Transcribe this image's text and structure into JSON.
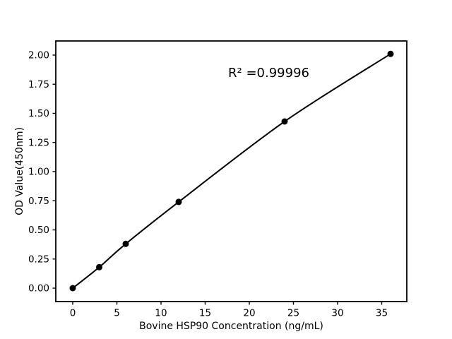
{
  "chart_data": {
    "type": "line",
    "title": "",
    "xlabel": "Bovine HSP90 Concentration (ng/mL)",
    "ylabel": "OD Value(450nm)",
    "annotation": "R² =0.99996",
    "x": [
      0,
      3,
      6,
      12,
      24,
      36
    ],
    "y": [
      0.0,
      0.18,
      0.38,
      0.74,
      1.43,
      2.01
    ],
    "xticks": [
      0,
      5,
      10,
      15,
      20,
      25,
      30,
      35
    ],
    "xtick_labels": [
      "0",
      "5",
      "10",
      "15",
      "20",
      "25",
      "30",
      "35"
    ],
    "yticks": [
      0.0,
      0.25,
      0.5,
      0.75,
      1.0,
      1.25,
      1.5,
      1.75,
      2.0
    ],
    "ytick_labels": [
      "0.00",
      "0.25",
      "0.50",
      "0.75",
      "1.00",
      "1.25",
      "1.50",
      "1.75",
      "2.00"
    ],
    "xlim": [
      -1.92,
      37.84
    ],
    "ylim": [
      -0.115,
      2.121
    ],
    "grid": false,
    "legend_position": "none",
    "line_color": "#000000",
    "marker_color": "#000000",
    "marker_style": "circle",
    "background_color": "#ffffff",
    "spine_color": "#000000"
  }
}
